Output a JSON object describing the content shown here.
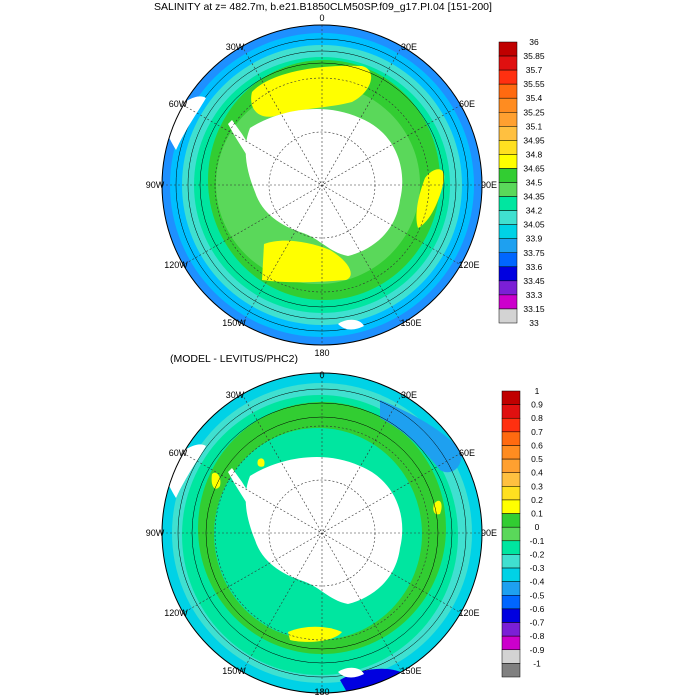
{
  "panels": [
    {
      "title": "SALINITY at z= 482.7m, b.e21.B1850CLM50SP.f09_g17.PI.04 [151-200]",
      "lon_labels": [
        "0",
        "30E",
        "60E",
        "90E",
        "120E",
        "150E",
        "180",
        "150W",
        "120W",
        "90W",
        "60W",
        "30W"
      ],
      "colorbar": {
        "labels": [
          "36",
          "35.85",
          "35.7",
          "35.55",
          "35.4",
          "35.25",
          "35.1",
          "34.95",
          "34.8",
          "34.65",
          "34.5",
          "34.35",
          "34.2",
          "34.05",
          "33.9",
          "33.75",
          "33.6",
          "33.45",
          "33.3",
          "33.15",
          "33"
        ],
        "colors": [
          "#c00000",
          "#e01010",
          "#ff3010",
          "#ff6a10",
          "#ff8c20",
          "#ffa030",
          "#ffc040",
          "#ffe020",
          "#ffff00",
          "#32cd32",
          "#5ad85a",
          "#00e6a0",
          "#40e0d0",
          "#00d2e6",
          "#1ea0f0",
          "#0066ff",
          "#0000e0",
          "#7b1fd6",
          "#cc00cc",
          "#d3d3d3"
        ]
      }
    },
    {
      "title": "(MODEL - LEVITUS/PHC2)",
      "lon_labels": [
        "0",
        "30E",
        "60E",
        "90E",
        "120E",
        "150E",
        "180",
        "150W",
        "120W",
        "90W",
        "60W",
        "30W"
      ],
      "colorbar": {
        "labels": [
          "1",
          "0.9",
          "0.8",
          "0.7",
          "0.6",
          "0.5",
          "0.4",
          "0.3",
          "0.2",
          "0.1",
          "0",
          "-0.1",
          "-0.2",
          "-0.3",
          "-0.4",
          "-0.5",
          "-0.6",
          "-0.7",
          "-0.8",
          "-0.9",
          "-1"
        ],
        "colors": [
          "#c00000",
          "#e01010",
          "#ff3010",
          "#ff6a10",
          "#ff8c20",
          "#ffa030",
          "#ffc040",
          "#ffe020",
          "#ffff00",
          "#32cd32",
          "#5ad85a",
          "#00e6a0",
          "#40e0d0",
          "#00d2e6",
          "#1ea0f0",
          "#0066ff",
          "#0000e0",
          "#7b1fd6",
          "#cc00cc",
          "#d3d3d3",
          "#808080"
        ]
      }
    }
  ],
  "map_colors": {
    "ocean_yellow": "#ffff00",
    "ocean_green": "#5ad85a",
    "ocean_lightgreen": "#32cd32",
    "ocean_teal": "#00e6a0",
    "ocean_cyan": "#40e0d0",
    "ocean_blue": "#1ea0f0",
    "land": "#ffffff"
  }
}
